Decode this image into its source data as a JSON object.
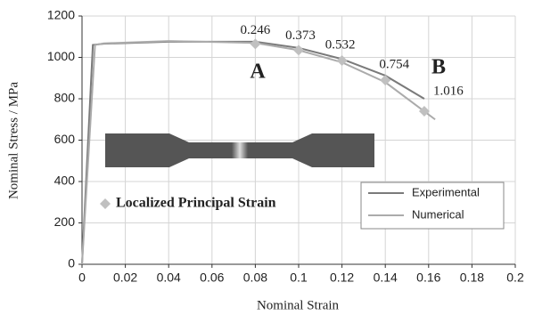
{
  "chart_data": {
    "type": "line",
    "x_label": "Nominal Strain",
    "y_label": "Nominal Stress / MPa",
    "xlim": [
      0,
      0.2
    ],
    "xticks": [
      0,
      0.02,
      0.04,
      0.06,
      0.08,
      0.1,
      0.12,
      0.14,
      0.16,
      0.18,
      0.2
    ],
    "ylim": [
      0,
      1200
    ],
    "yticks": [
      0,
      200,
      400,
      600,
      800,
      1000,
      1200
    ],
    "grid": true,
    "series": [
      {
        "name": "Experimental",
        "color": "#7a7a7a",
        "x": [
          0,
          0.005,
          0.01,
          0.04,
          0.08,
          0.1,
          0.12,
          0.14,
          0.158
        ],
        "values": [
          0,
          1060,
          1066,
          1076,
          1076,
          1046,
          992,
          912,
          800
        ]
      },
      {
        "name": "Numerical",
        "color": "#ababab",
        "x": [
          0,
          0.006,
          0.01,
          0.04,
          0.08,
          0.1,
          0.12,
          0.14,
          0.163
        ],
        "values": [
          0,
          1060,
          1068,
          1079,
          1070,
          1035,
          976,
          880,
          700
        ]
      },
      {
        "name": "Localized Principal Strain",
        "color": "#c0c0c0",
        "marker": "diamond",
        "x": [
          0.08,
          0.1,
          0.12,
          0.14,
          0.158
        ],
        "values": [
          1065,
          1035,
          985,
          890,
          740
        ],
        "point_labels": [
          0.246,
          0.373,
          0.532,
          0.754,
          1.016
        ]
      }
    ],
    "annotations": [
      "A",
      "B"
    ]
  }
}
